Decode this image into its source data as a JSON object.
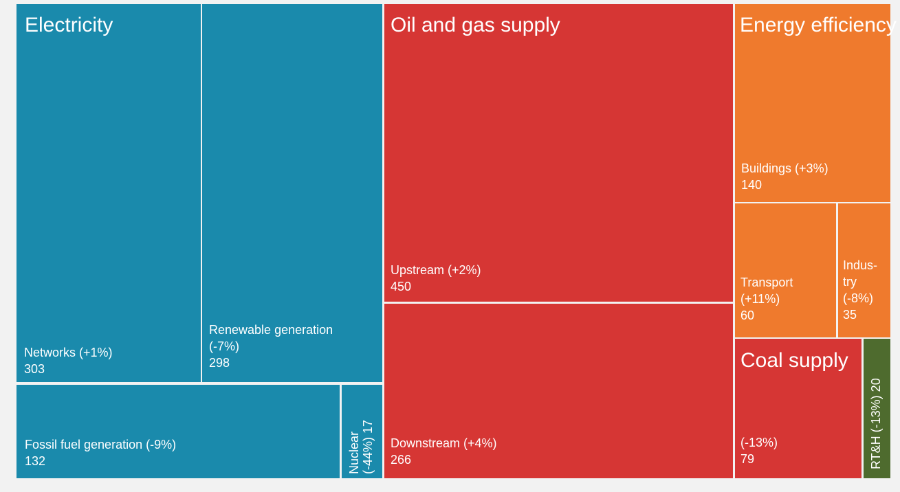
{
  "chart_data": {
    "type": "treemap",
    "colors": {
      "Electricity": "#1a8aac",
      "Oil and gas supply": "#d63634",
      "Energy efficiency": "#ef7a2d",
      "Coal supply": "#d63634",
      "RT&H": "#4e6b2e"
    },
    "groups": [
      {
        "key": "electricity",
        "name": "Electricity",
        "color": "#1a8aac",
        "items": [
          {
            "key": "networks",
            "label_lines": [
              "Networks (+1%)"
            ],
            "value": 303,
            "change": "+1%"
          },
          {
            "key": "renewable",
            "label_lines": [
              "Renewable generation",
              "(-7%)"
            ],
            "value": 298,
            "change": "-7%"
          },
          {
            "key": "fossil",
            "label_lines": [
              "Fossil fuel generation (-9%)"
            ],
            "value": 132,
            "change": "-9%"
          },
          {
            "key": "nuclear",
            "label_lines": [
              "Nuclear",
              "(-44%) 17"
            ],
            "value": 17,
            "change": "-44%"
          }
        ]
      },
      {
        "key": "oilgas",
        "name": "Oil and gas supply",
        "color": "#d63634",
        "items": [
          {
            "key": "upstream",
            "label_lines": [
              "Upstream (+2%)"
            ],
            "value": 450,
            "change": "+2%"
          },
          {
            "key": "downstream",
            "label_lines": [
              "Downstream (+4%)"
            ],
            "value": 266,
            "change": "+4%"
          }
        ]
      },
      {
        "key": "efficiency",
        "name": "Energy efficiency",
        "color": "#ef7a2d",
        "items": [
          {
            "key": "buildings",
            "label_lines": [
              "Buildings (+3%)"
            ],
            "value": 140,
            "change": "+3%"
          },
          {
            "key": "transport",
            "label_lines": [
              "Transport",
              "(+11%)"
            ],
            "value": 60,
            "change": "+11%"
          },
          {
            "key": "industry",
            "label_lines": [
              "Indus-",
              "try",
              "(-8%)"
            ],
            "value": 35,
            "change": "-8%"
          }
        ]
      },
      {
        "key": "coal",
        "name": "Coal supply",
        "color": "#d63634",
        "items": [
          {
            "key": "coal",
            "label_lines": [
              "(-13%)"
            ],
            "value": 79,
            "change": "-13%"
          }
        ]
      },
      {
        "key": "rth",
        "name": "",
        "color": "#4e6b2e",
        "items": [
          {
            "key": "rth",
            "label_lines": [
              "RT&H (-13%) 20"
            ],
            "value": 20,
            "change": "-13%"
          }
        ]
      }
    ]
  }
}
